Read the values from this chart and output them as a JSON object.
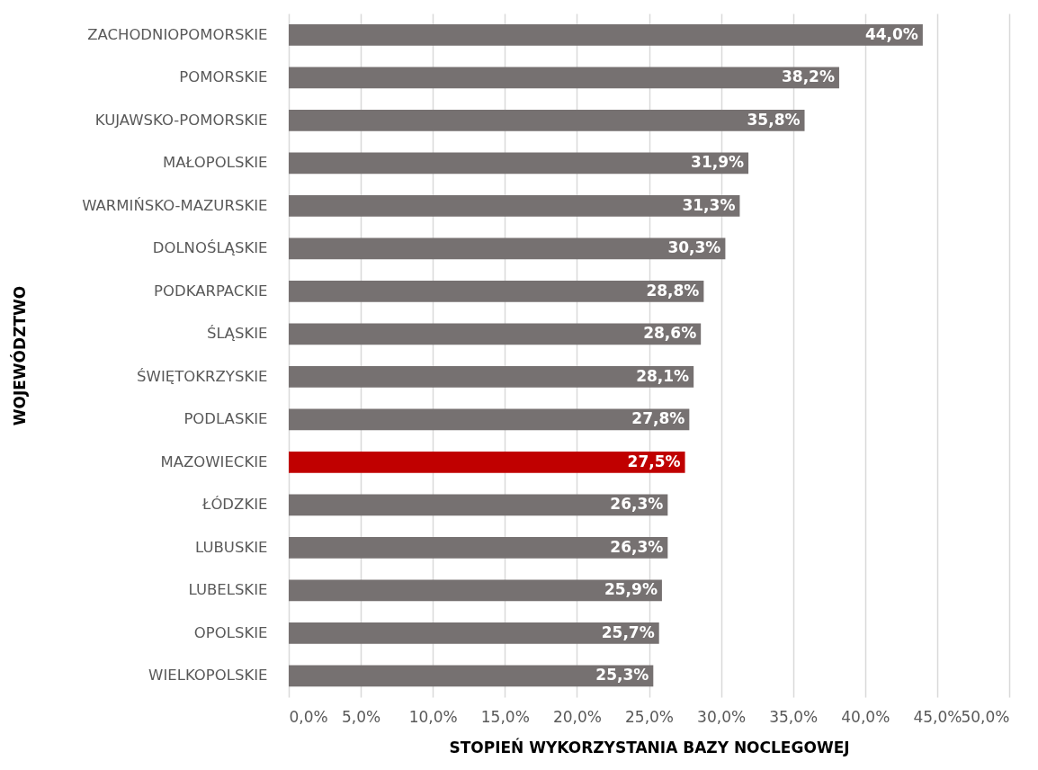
{
  "chart_data": {
    "type": "bar",
    "orientation": "horizontal",
    "xlabel": "STOPIEŃ WYKORZYSTANIA BAZY NOCLEGOWEJ",
    "ylabel": "WOJEWÓDZTWO",
    "categories": [
      "ZACHODNIOPOMORSKIE",
      "POMORSKIE",
      "KUJAWSKO-POMORSKIE",
      "MAŁOPOLSKIE",
      "WARMIŃSKO-MAZURSKIE",
      "DOLNOŚLĄSKIE",
      "PODKARPACKIE",
      "ŚLĄSKIE",
      "ŚWIĘTOKRZYSKIE",
      "PODLASKIE",
      "MAZOWIECKIE",
      "ŁÓDZKIE",
      "LUBUSKIE",
      "LUBELSKIE",
      "OPOLSKIE",
      "WIELKOPOLSKIE"
    ],
    "values": [
      44.0,
      38.2,
      35.8,
      31.9,
      31.3,
      30.3,
      28.8,
      28.6,
      28.1,
      27.8,
      27.5,
      26.3,
      26.3,
      25.9,
      25.7,
      25.3
    ],
    "value_labels": [
      "44,0%",
      "38,2%",
      "35,8%",
      "31,9%",
      "31,3%",
      "30,3%",
      "28,8%",
      "28,6%",
      "28,1%",
      "27,8%",
      "27,5%",
      "26,3%",
      "26,3%",
      "25,9%",
      "25,7%",
      "25,3%"
    ],
    "colors": [
      "#767171",
      "#767171",
      "#767171",
      "#767171",
      "#767171",
      "#767171",
      "#767171",
      "#767171",
      "#767171",
      "#767171",
      "#c00000",
      "#767171",
      "#767171",
      "#767171",
      "#767171",
      "#767171"
    ],
    "xlim": [
      0,
      50
    ],
    "xticks": [
      {
        "value": 0,
        "label": "0,0%"
      },
      {
        "value": 5,
        "label": "5,0%"
      },
      {
        "value": 10,
        "label": "10,0%"
      },
      {
        "value": 15,
        "label": "15,0%"
      },
      {
        "value": 20,
        "label": "20,0%"
      },
      {
        "value": 25,
        "label": "25,0%"
      },
      {
        "value": 30,
        "label": "30,0%"
      },
      {
        "value": 35,
        "label": "35,0%"
      },
      {
        "value": 40,
        "label": "40,0%"
      },
      {
        "value": 45,
        "label": "45,0%"
      },
      {
        "value": 50,
        "label": "50,0%"
      }
    ],
    "grid": "x"
  }
}
